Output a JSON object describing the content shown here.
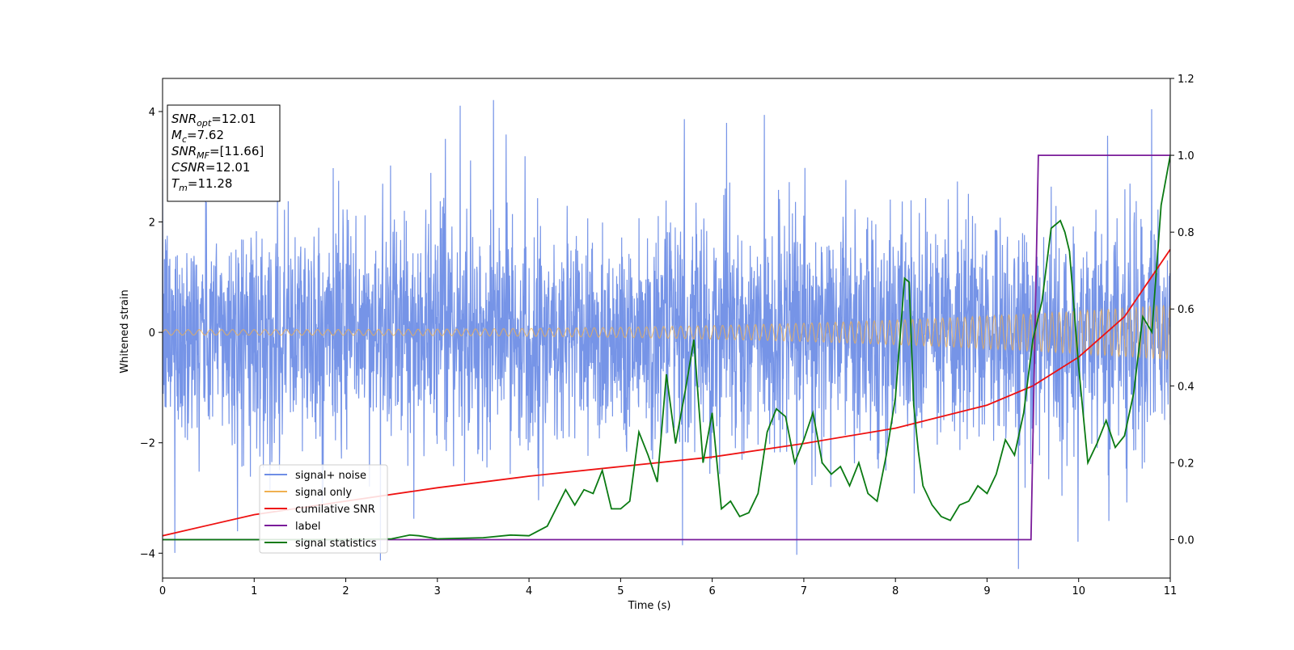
{
  "chart_data": {
    "type": "line",
    "xlabel": "Time (s)",
    "ylabel": "Whitened strain",
    "xlim": [
      0,
      11
    ],
    "ylim": [
      -4.45,
      4.6
    ],
    "y2lim": [
      -0.1,
      1.2
    ],
    "x_ticks": [
      "0",
      "1",
      "2",
      "3",
      "4",
      "5",
      "6",
      "7",
      "8",
      "9",
      "10",
      "11"
    ],
    "y_ticks": [
      "−4",
      "−2",
      "0",
      "2",
      "4"
    ],
    "y2_ticks": [
      "0.0",
      "0.2",
      "0.4",
      "0.6",
      "0.8",
      "1.0",
      "1.2"
    ],
    "grid": false,
    "legend_position": "lower-left",
    "info_box": {
      "lines": [
        {
          "main": "SNR",
          "sub": "opt",
          "value": "=12.01"
        },
        {
          "main": "M",
          "sub": "c",
          "value": "=7.62"
        },
        {
          "main": "SNR",
          "sub": "MF",
          "value": "=[11.66]"
        },
        {
          "main": "CSNR",
          "sub": "",
          "value": "=12.01"
        },
        {
          "main": "T",
          "sub": "m",
          "value": "=11.28"
        }
      ]
    },
    "series": [
      {
        "name": "signal+ noise",
        "color": "#6f8ee6",
        "axis": "left",
        "style": "dense noise, amplitude ~±2.5, spikes to ±4.1"
      },
      {
        "name": "signal only",
        "color": "#f0b050",
        "axis": "left",
        "style": "chirp, amplitude grows from 0.05 to 0.5"
      },
      {
        "name": "cumilative SNR",
        "color": "#ee1111",
        "axis": "right",
        "x": [
          0,
          1,
          2,
          3,
          4,
          5,
          6,
          7,
          8,
          9,
          9.5,
          10,
          10.5,
          11
        ],
        "y": [
          0.01,
          0.065,
          0.1,
          0.135,
          0.165,
          0.19,
          0.215,
          0.25,
          0.29,
          0.35,
          0.4,
          0.475,
          0.58,
          0.755
        ]
      },
      {
        "name": "label",
        "color": "#7a1b9a",
        "axis": "right",
        "x": [
          0,
          9.48,
          9.56,
          11
        ],
        "y": [
          0,
          0,
          1,
          1
        ]
      },
      {
        "name": "signal statistics",
        "color": "#0a7a12",
        "axis": "right",
        "x": [
          0,
          1,
          2,
          2.5,
          2.7,
          2.8,
          3.0,
          3.5,
          3.8,
          4.0,
          4.2,
          4.4,
          4.5,
          4.6,
          4.7,
          4.8,
          4.9,
          5.0,
          5.1,
          5.2,
          5.3,
          5.4,
          5.5,
          5.6,
          5.7,
          5.8,
          5.9,
          6.0,
          6.1,
          6.2,
          6.3,
          6.4,
          6.5,
          6.6,
          6.7,
          6.8,
          6.9,
          7.0,
          7.1,
          7.2,
          7.3,
          7.4,
          7.5,
          7.6,
          7.7,
          7.8,
          7.9,
          8.0,
          8.1,
          8.15,
          8.2,
          8.25,
          8.3,
          8.4,
          8.5,
          8.6,
          8.7,
          8.8,
          8.9,
          9.0,
          9.1,
          9.2,
          9.3,
          9.4,
          9.5,
          9.6,
          9.7,
          9.8,
          9.85,
          9.9,
          10.0,
          10.1,
          10.2,
          10.3,
          10.4,
          10.5,
          10.6,
          10.7,
          10.8,
          10.9,
          11.0
        ],
        "y": [
          0,
          0,
          0,
          0.002,
          0.012,
          0.01,
          0.002,
          0.005,
          0.012,
          0.01,
          0.035,
          0.13,
          0.09,
          0.13,
          0.12,
          0.18,
          0.08,
          0.08,
          0.1,
          0.28,
          0.22,
          0.15,
          0.43,
          0.25,
          0.38,
          0.52,
          0.2,
          0.33,
          0.08,
          0.1,
          0.06,
          0.07,
          0.12,
          0.28,
          0.34,
          0.32,
          0.2,
          0.26,
          0.33,
          0.2,
          0.17,
          0.19,
          0.14,
          0.2,
          0.12,
          0.1,
          0.22,
          0.37,
          0.68,
          0.67,
          0.35,
          0.23,
          0.14,
          0.09,
          0.06,
          0.05,
          0.09,
          0.1,
          0.14,
          0.12,
          0.17,
          0.26,
          0.22,
          0.33,
          0.52,
          0.62,
          0.81,
          0.83,
          0.8,
          0.75,
          0.45,
          0.2,
          0.25,
          0.31,
          0.24,
          0.27,
          0.38,
          0.58,
          0.54,
          0.87,
          1.0
        ]
      }
    ]
  }
}
